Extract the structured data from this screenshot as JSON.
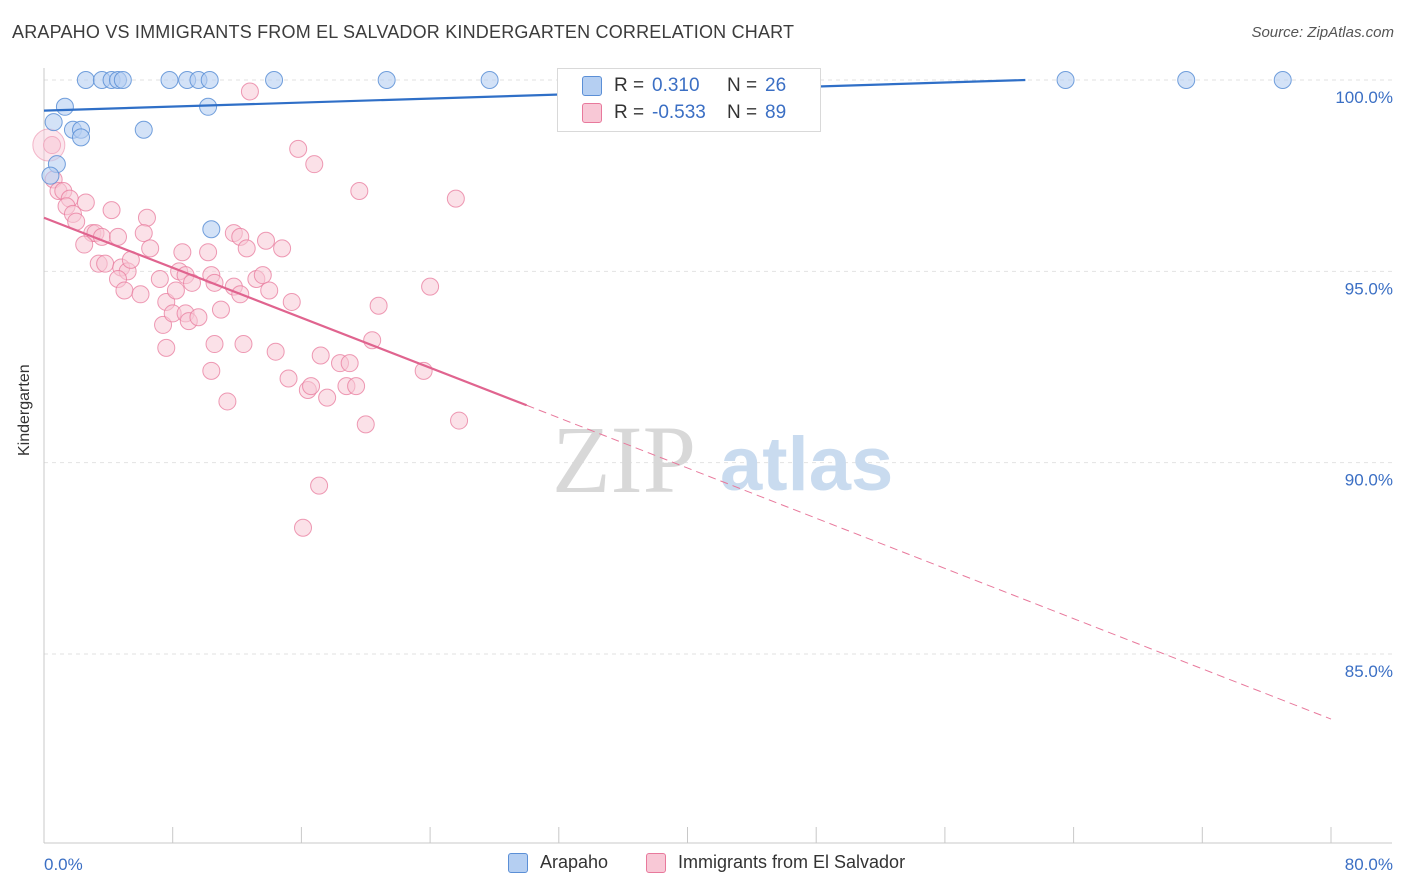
{
  "header": {
    "title": "ARAPAHO VS IMMIGRANTS FROM EL SALVADOR KINDERGARTEN CORRELATION CHART",
    "source": "Source: ZipAtlas.com"
  },
  "watermark": {
    "zip": "ZIP",
    "atlas": "atlas"
  },
  "legend": {
    "rows": [
      {
        "r_label": "R =",
        "r_value": "0.310",
        "n_label": "N =",
        "n_value": "26"
      },
      {
        "r_label": "R =",
        "r_value": "-0.533",
        "n_label": "N =",
        "n_value": "89"
      }
    ]
  },
  "chart_data": {
    "type": "scatter",
    "title": "ARAPAHO VS IMMIGRANTS FROM EL SALVADOR KINDERGARTEN CORRELATION CHART",
    "xlabel": "",
    "ylabel": "Kindergarten",
    "xlim": [
      0,
      80
    ],
    "ylim": [
      80,
      100.5
    ],
    "x_tick_labels": [
      "0.0%",
      "80.0%"
    ],
    "y_ticks": [
      100,
      95,
      90,
      85
    ],
    "y_tick_labels": [
      "100.0%",
      "95.0%",
      "90.0%",
      "85.0%"
    ],
    "grid": true,
    "colors": {
      "arapaho": "#5b8fd6",
      "elsalvador": "#e8799c"
    },
    "series": [
      {
        "name": "Arapaho",
        "r": 0.31,
        "n": 26,
        "trend": {
          "x0": 0,
          "y0": 99.2,
          "x1": 61,
          "y1": 100
        },
        "points": [
          [
            2.6,
            100
          ],
          [
            3.6,
            100
          ],
          [
            4.2,
            100
          ],
          [
            4.6,
            100
          ],
          [
            4.9,
            100
          ],
          [
            7.8,
            100
          ],
          [
            8.9,
            100
          ],
          [
            9.6,
            100
          ],
          [
            10.3,
            100
          ],
          [
            14.3,
            100
          ],
          [
            21.3,
            100
          ],
          [
            27.7,
            100
          ],
          [
            63.5,
            100
          ],
          [
            71.0,
            100
          ],
          [
            77.0,
            100
          ],
          [
            1.3,
            99.3
          ],
          [
            10.2,
            99.3
          ],
          [
            0.6,
            98.9
          ],
          [
            1.8,
            98.7
          ],
          [
            2.3,
            98.7
          ],
          [
            6.2,
            98.7
          ],
          [
            2.3,
            98.5
          ],
          [
            0.8,
            97.8
          ],
          [
            0.4,
            97.5
          ],
          [
            10.4,
            96.1
          ]
        ]
      },
      {
        "name": "Immigrants from El Salvador",
        "r": -0.533,
        "n": 89,
        "trend": {
          "x0": 0,
          "y0": 96.4,
          "x1": 30,
          "y1": 91.5,
          "dash_x1": 80,
          "dash_y1": 83.3
        },
        "points": [
          [
            0.5,
            98.3
          ],
          [
            0.6,
            97.4
          ],
          [
            0.9,
            97.1
          ],
          [
            1.2,
            97.1
          ],
          [
            1.6,
            96.9
          ],
          [
            1.4,
            96.7
          ],
          [
            1.8,
            96.5
          ],
          [
            2.0,
            96.3
          ],
          [
            2.6,
            96.8
          ],
          [
            3.0,
            96.0
          ],
          [
            3.2,
            96.0
          ],
          [
            3.6,
            95.9
          ],
          [
            4.2,
            96.6
          ],
          [
            4.6,
            95.9
          ],
          [
            2.5,
            95.7
          ],
          [
            3.4,
            95.2
          ],
          [
            3.8,
            95.2
          ],
          [
            4.8,
            95.1
          ],
          [
            5.2,
            95.0
          ],
          [
            5.4,
            95.3
          ],
          [
            4.6,
            94.8
          ],
          [
            5.0,
            94.5
          ],
          [
            6.0,
            94.4
          ],
          [
            6.4,
            96.4
          ],
          [
            6.2,
            96.0
          ],
          [
            6.6,
            95.6
          ],
          [
            7.2,
            94.8
          ],
          [
            7.6,
            94.2
          ],
          [
            8.2,
            94.5
          ],
          [
            8.6,
            95.5
          ],
          [
            8.4,
            95.0
          ],
          [
            8.8,
            94.9
          ],
          [
            7.4,
            93.6
          ],
          [
            7.6,
            93.0
          ],
          [
            8.0,
            93.9
          ],
          [
            8.8,
            93.9
          ],
          [
            9.2,
            94.7
          ],
          [
            9.0,
            93.7
          ],
          [
            9.6,
            93.8
          ],
          [
            10.2,
            95.5
          ],
          [
            10.4,
            94.9
          ],
          [
            10.6,
            94.7
          ],
          [
            10.4,
            92.4
          ],
          [
            10.6,
            93.1
          ],
          [
            11.0,
            94.0
          ],
          [
            11.4,
            91.6
          ],
          [
            11.8,
            96.0
          ],
          [
            12.2,
            95.9
          ],
          [
            11.8,
            94.6
          ],
          [
            12.2,
            94.4
          ],
          [
            12.4,
            93.1
          ],
          [
            12.6,
            95.6
          ],
          [
            12.8,
            99.7
          ],
          [
            13.2,
            94.8
          ],
          [
            13.6,
            94.9
          ],
          [
            13.8,
            95.8
          ],
          [
            14.0,
            94.5
          ],
          [
            14.4,
            92.9
          ],
          [
            14.8,
            95.6
          ],
          [
            15.4,
            94.2
          ],
          [
            15.2,
            92.2
          ],
          [
            15.8,
            98.2
          ],
          [
            16.4,
            91.9
          ],
          [
            16.6,
            92.0
          ],
          [
            16.8,
            97.8
          ],
          [
            17.2,
            92.8
          ],
          [
            17.6,
            91.7
          ],
          [
            18.4,
            92.6
          ],
          [
            18.8,
            92.0
          ],
          [
            19.0,
            92.6
          ],
          [
            19.4,
            92.0
          ],
          [
            19.6,
            97.1
          ],
          [
            20.0,
            91.0
          ],
          [
            20.4,
            93.2
          ],
          [
            20.8,
            94.1
          ],
          [
            23.6,
            92.4
          ],
          [
            24.0,
            94.6
          ],
          [
            25.6,
            96.9
          ],
          [
            25.8,
            91.1
          ],
          [
            17.1,
            89.4
          ],
          [
            16.1,
            88.3
          ]
        ]
      }
    ]
  },
  "bottom_legend": {
    "items": [
      "Arapaho",
      "Immigrants from El Salvador"
    ]
  }
}
